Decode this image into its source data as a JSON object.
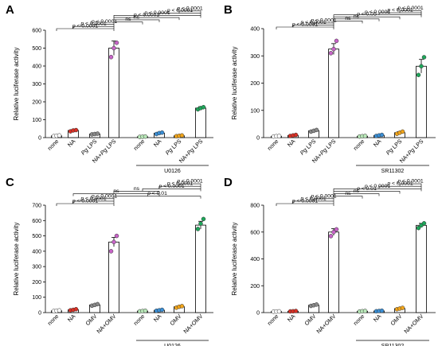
{
  "panels": [
    {
      "letter": "A",
      "ylabel": "Relative luciferase activity",
      "inhibitor": "U0126",
      "inhibitor_from": 4,
      "chart_data": {
        "type": "bar",
        "categories": [
          [
            "none"
          ],
          [
            "NA"
          ],
          [
            "Pg",
            " LPS"
          ],
          [
            "NA+",
            "Pg",
            " LPS"
          ],
          [
            "none"
          ],
          [
            "NA"
          ],
          [
            "Pg",
            " LPS"
          ],
          [
            "NA+",
            "Pg",
            " LPS"
          ]
        ],
        "values": [
          10,
          40,
          20,
          500,
          5,
          25,
          10,
          165
        ],
        "errors": [
          2,
          5,
          3,
          40,
          1,
          5,
          3,
          8
        ],
        "points": [
          [
            8,
            10,
            12
          ],
          [
            35,
            40,
            42
          ],
          [
            18,
            20,
            22
          ],
          [
            450,
            500,
            530
          ],
          [
            4,
            5,
            6
          ],
          [
            20,
            25,
            28
          ],
          [
            8,
            10,
            12
          ],
          [
            158,
            165,
            170
          ]
        ],
        "colors": [
          "#ffffff",
          "#d93025",
          "#8a8a8a",
          "#c864c8",
          "#b9e8b9",
          "#3a8fd6",
          "#f2a51a",
          "#1ea65a"
        ],
        "ylim": [
          0,
          600
        ],
        "yticks": [
          0,
          100,
          200,
          300,
          400,
          500,
          600
        ],
        "comparisons": [
          {
            "a": 0,
            "b": 3,
            "label": "p < 0.0001"
          },
          {
            "a": 1,
            "b": 3,
            "label": "p < 0.0001"
          },
          {
            "a": 2,
            "b": 3,
            "label": "p < 0.0001"
          },
          {
            "a": 3,
            "b": 4,
            "label": "ns"
          },
          {
            "a": 3,
            "b": 5,
            "label": "ns"
          },
          {
            "a": 3,
            "b": 6,
            "label": "p < 0.0001"
          },
          {
            "a": 3,
            "b": 7,
            "label": "p < 0.0001"
          },
          {
            "a": 5,
            "b": 7,
            "label": "p < 0.0001"
          },
          {
            "a": 6,
            "b": 7,
            "label": "p < 0.0001"
          }
        ]
      }
    },
    {
      "letter": "B",
      "ylabel": "Relative luciferase activity",
      "inhibitor": "SR11302",
      "inhibitor_from": 4,
      "chart_data": {
        "type": "bar",
        "categories": [
          [
            "none"
          ],
          [
            "NA"
          ],
          [
            "Pg",
            " LPS"
          ],
          [
            "NA+",
            "Pg",
            " LPS"
          ],
          [
            "none"
          ],
          [
            "NA"
          ],
          [
            "Pg",
            " LPS"
          ],
          [
            "NA+",
            "Pg",
            " LPS"
          ]
        ],
        "values": [
          5,
          8,
          25,
          325,
          5,
          8,
          18,
          262
        ],
        "errors": [
          1,
          2,
          3,
          20,
          1,
          2,
          4,
          25
        ],
        "points": [
          [
            4,
            5,
            6
          ],
          [
            6,
            8,
            10
          ],
          [
            22,
            25,
            28
          ],
          [
            310,
            325,
            355
          ],
          [
            4,
            5,
            6
          ],
          [
            6,
            8,
            10
          ],
          [
            14,
            18,
            22
          ],
          [
            230,
            262,
            295
          ]
        ],
        "colors": [
          "#ffffff",
          "#d93025",
          "#8a8a8a",
          "#c864c8",
          "#b9e8b9",
          "#3a8fd6",
          "#f2a51a",
          "#1ea65a"
        ],
        "ylim": [
          0,
          400
        ],
        "yticks": [
          0,
          100,
          200,
          300,
          400
        ],
        "comparisons": [
          {
            "a": 0,
            "b": 3,
            "label": "p < 0.0001"
          },
          {
            "a": 1,
            "b": 3,
            "label": "p < 0.0001"
          },
          {
            "a": 2,
            "b": 3,
            "label": "p < 0.0001"
          },
          {
            "a": 3,
            "b": 4,
            "label": "ns"
          },
          {
            "a": 3,
            "b": 5,
            "label": "ns"
          },
          {
            "a": 3,
            "b": 6,
            "label": "p < 0.05"
          },
          {
            "a": 3,
            "b": 7,
            "label": "p < 0.0001"
          },
          {
            "a": 5,
            "b": 7,
            "label": "p < 0.0001"
          },
          {
            "a": 6,
            "b": 7,
            "label": "p < 0.0001"
          }
        ]
      }
    },
    {
      "letter": "C",
      "ylabel": "Relative luciferase activity",
      "inhibitor": "U0126",
      "inhibitor_from": 4,
      "chart_data": {
        "type": "bar",
        "categories": [
          [
            "none"
          ],
          [
            "NA"
          ],
          [
            "OMV"
          ],
          [
            "NA+OMV"
          ],
          [
            "none"
          ],
          [
            "NA"
          ],
          [
            "OMV"
          ],
          [
            "NA+OMV"
          ]
        ],
        "values": [
          12,
          18,
          50,
          460,
          10,
          15,
          38,
          570
        ],
        "errors": [
          2,
          3,
          5,
          30,
          2,
          3,
          5,
          25
        ],
        "points": [
          [
            10,
            12,
            14
          ],
          [
            15,
            18,
            22
          ],
          [
            45,
            50,
            55
          ],
          [
            400,
            460,
            500
          ],
          [
            8,
            10,
            12
          ],
          [
            12,
            15,
            18
          ],
          [
            32,
            38,
            42
          ],
          [
            545,
            580,
            610
          ]
        ],
        "colors": [
          "#ffffff",
          "#d93025",
          "#8a8a8a",
          "#c864c8",
          "#b9e8b9",
          "#3a8fd6",
          "#f2a51a",
          "#1ea65a"
        ],
        "ylim": [
          0,
          700
        ],
        "yticks": [
          0,
          100,
          200,
          300,
          400,
          500,
          600,
          700
        ],
        "comparisons": [
          {
            "a": 0,
            "b": 3,
            "label": "p < 0.0001"
          },
          {
            "a": 1,
            "b": 3,
            "label": "p < 0.0001"
          },
          {
            "a": 2,
            "b": 3,
            "label": "p < 0.0001"
          },
          {
            "a": 3,
            "b": 7,
            "label": "p < 0.01"
          },
          {
            "a": 1,
            "b": 5,
            "label": "ns"
          },
          {
            "a": 3,
            "b": 5,
            "label": "ns"
          },
          {
            "a": 4,
            "b": 7,
            "label": "p < 0.0001"
          },
          {
            "a": 5,
            "b": 7,
            "label": "p < 0.0001"
          },
          {
            "a": 6,
            "b": 7,
            "label": "p < 0.0001"
          }
        ]
      }
    },
    {
      "letter": "D",
      "ylabel": "Relative luciferase activity",
      "inhibitor": "SR11302",
      "inhibitor_from": 4,
      "chart_data": {
        "type": "bar",
        "categories": [
          [
            "none"
          ],
          [
            "NA"
          ],
          [
            "OMV"
          ],
          [
            "NA+OMV"
          ],
          [
            "none"
          ],
          [
            "NA"
          ],
          [
            "OMV"
          ],
          [
            "NA+OMV"
          ]
        ],
        "values": [
          8,
          10,
          55,
          600,
          10,
          12,
          30,
          650
        ],
        "errors": [
          1,
          2,
          5,
          25,
          2,
          2,
          4,
          15
        ],
        "points": [
          [
            7,
            8,
            9
          ],
          [
            9,
            10,
            12
          ],
          [
            50,
            55,
            60
          ],
          [
            570,
            600,
            620
          ],
          [
            8,
            10,
            12
          ],
          [
            10,
            12,
            14
          ],
          [
            25,
            30,
            35
          ],
          [
            630,
            650,
            665
          ]
        ],
        "colors": [
          "#ffffff",
          "#d93025",
          "#8a8a8a",
          "#c864c8",
          "#b9e8b9",
          "#3a8fd6",
          "#f2a51a",
          "#1ea65a"
        ],
        "ylim": [
          0,
          800
        ],
        "yticks": [
          0,
          200,
          400,
          600,
          800
        ],
        "comparisons": [
          {
            "a": 0,
            "b": 3,
            "label": "p < 0.0001"
          },
          {
            "a": 1,
            "b": 3,
            "label": "p < 0.0001"
          },
          {
            "a": 2,
            "b": 3,
            "label": "p < 0.0001"
          },
          {
            "a": 3,
            "b": 4,
            "label": "ns"
          },
          {
            "a": 3,
            "b": 5,
            "label": "ns"
          },
          {
            "a": 3,
            "b": 6,
            "label": "p < 0.01"
          },
          {
            "a": 3,
            "b": 7,
            "label": "p < 0.0001"
          },
          {
            "a": 5,
            "b": 7,
            "label": "p < 0.0001"
          },
          {
            "a": 6,
            "b": 7,
            "label": "p < 0.0001"
          }
        ]
      }
    }
  ]
}
